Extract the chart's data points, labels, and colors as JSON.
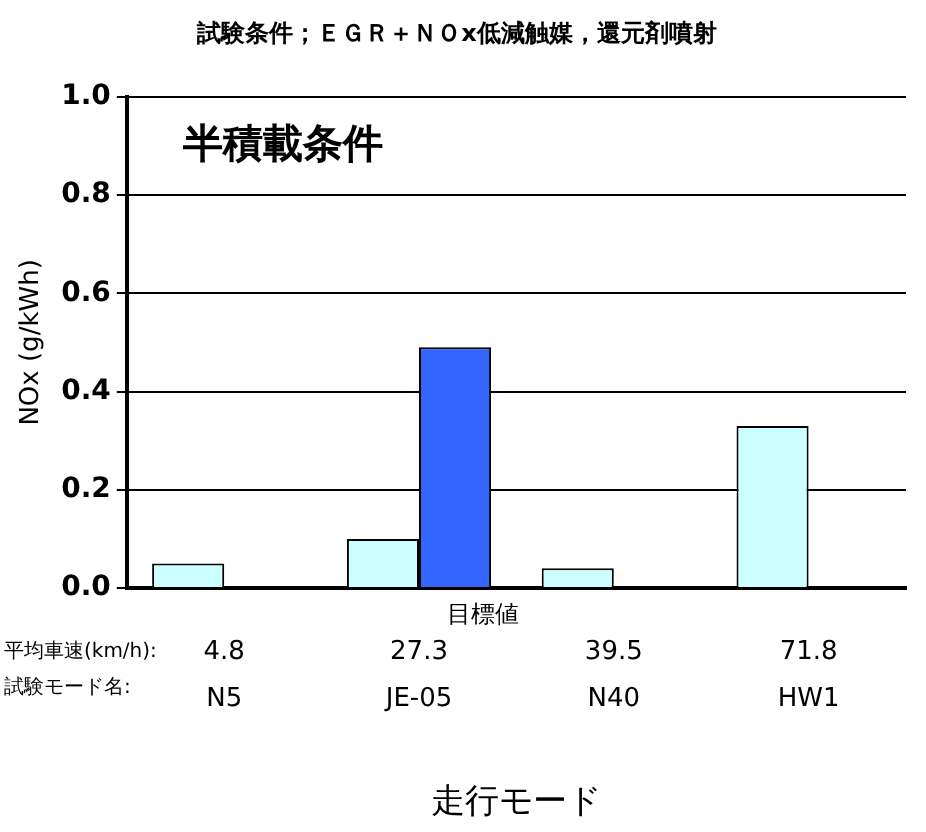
{
  "chart_data": {
    "type": "bar",
    "title": "試験条件；ＥＧＲ＋ＮＯx低減触媒，還元剤噴射",
    "xlabel": "走行モード",
    "ylabel": "NOx (g/kWh)",
    "categories": [
      "N5",
      "JE-05",
      "N40",
      "HW1"
    ],
    "series": [
      {
        "color": "#ccffff",
        "values": [
          0.05,
          0.1,
          0.04,
          0.33
        ]
      },
      {
        "name": "目標値",
        "color": "#3366ff",
        "values": [
          null,
          0.49,
          null,
          null
        ]
      }
    ],
    "ylim": [
      0,
      1
    ],
    "yticks": [
      {
        "value": 0,
        "label": "0.0"
      },
      {
        "value": 0.2,
        "label": "0.2"
      },
      {
        "value": 0.4,
        "label": "0.4"
      },
      {
        "value": 0.6,
        "label": "0.6"
      },
      {
        "value": 0.8,
        "label": "0.8"
      },
      {
        "value": 1,
        "label": "1.0"
      }
    ],
    "grid": "y",
    "legend": false,
    "annotations": [
      "半積載条件",
      "平均車速(km/h):",
      "試験モード名:",
      "4.8",
      "27.3",
      "39.5",
      "71.8"
    ]
  }
}
